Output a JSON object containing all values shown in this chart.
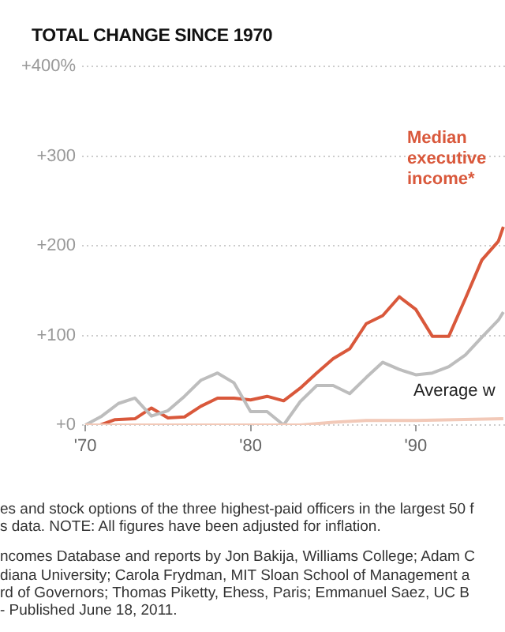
{
  "chart_data": {
    "type": "line",
    "title": "TOTAL CHANGE SINCE 1970",
    "xlim": [
      1969.8,
      1995.4
    ],
    "xticks": [
      {
        "value": 1970,
        "label": "'70"
      },
      {
        "value": 1980,
        "label": "'80"
      },
      {
        "value": 1990,
        "label": "'90"
      }
    ],
    "ylim": [
      0,
      400
    ],
    "yticks": [
      {
        "value": 0,
        "label": "+0"
      },
      {
        "value": 100,
        "label": "+100"
      },
      {
        "value": 200,
        "label": "+200"
      },
      {
        "value": 300,
        "label": "+300"
      },
      {
        "value": 400,
        "label": "+400%"
      }
    ],
    "grid": "y",
    "legend": false,
    "marker": "none",
    "line_style": "solid",
    "series": [
      {
        "name": "Average w",
        "color": "#f2c9b8",
        "x": [
          1970,
          1975,
          1980,
          1983,
          1985,
          1987,
          1990,
          1995.3
        ],
        "values": [
          0,
          0,
          0,
          0,
          3,
          5,
          5,
          7
        ]
      },
      {
        "color": "#bdbdbd",
        "x": [
          1970,
          1971,
          1972,
          1973,
          1974,
          1975,
          1976,
          1977,
          1978,
          1979,
          1980,
          1981,
          1982,
          1983,
          1984,
          1985,
          1986,
          1987,
          1988,
          1989,
          1990,
          1991,
          1992,
          1993,
          1994,
          1995,
          1995.3
        ],
        "values": [
          0,
          10,
          24,
          30,
          10,
          16,
          32,
          50,
          58,
          47,
          15,
          15,
          0,
          26,
          44,
          44,
          35,
          53,
          70,
          62,
          56,
          58,
          65,
          78,
          98,
          117,
          126
        ]
      },
      {
        "name": "Median executive income*",
        "color": "#d9583b",
        "x": [
          1970,
          1970.9,
          1971.8,
          1973,
          1974,
          1975,
          1976,
          1977,
          1978,
          1979,
          1980,
          1981,
          1982,
          1983,
          1984,
          1985,
          1986,
          1987,
          1988,
          1989,
          1990,
          1991,
          1992,
          1993,
          1994,
          1995,
          1995.3
        ],
        "values": [
          0,
          0,
          6,
          7,
          19,
          8,
          9,
          21,
          30,
          30,
          28,
          32,
          27,
          41,
          58,
          74,
          85,
          113,
          122,
          143,
          129,
          99,
          99,
          141,
          184,
          205,
          221
        ]
      }
    ],
    "annotations": [
      "es and stock options of the three highest-paid officers in the largest 50 f",
      "s data. NOTE: All figures have been adjusted for inflation.",
      "ncomes Database and reports by Jon Bakija, Williams College; Adam C",
      "diana University; Carola Frydman, MIT Sloan School of Management a",
      "rd of Governors; Thomas Piketty, Ehess, Paris; Emmanuel Saez, UC B",
      "- Published June 18, 2011."
    ]
  }
}
